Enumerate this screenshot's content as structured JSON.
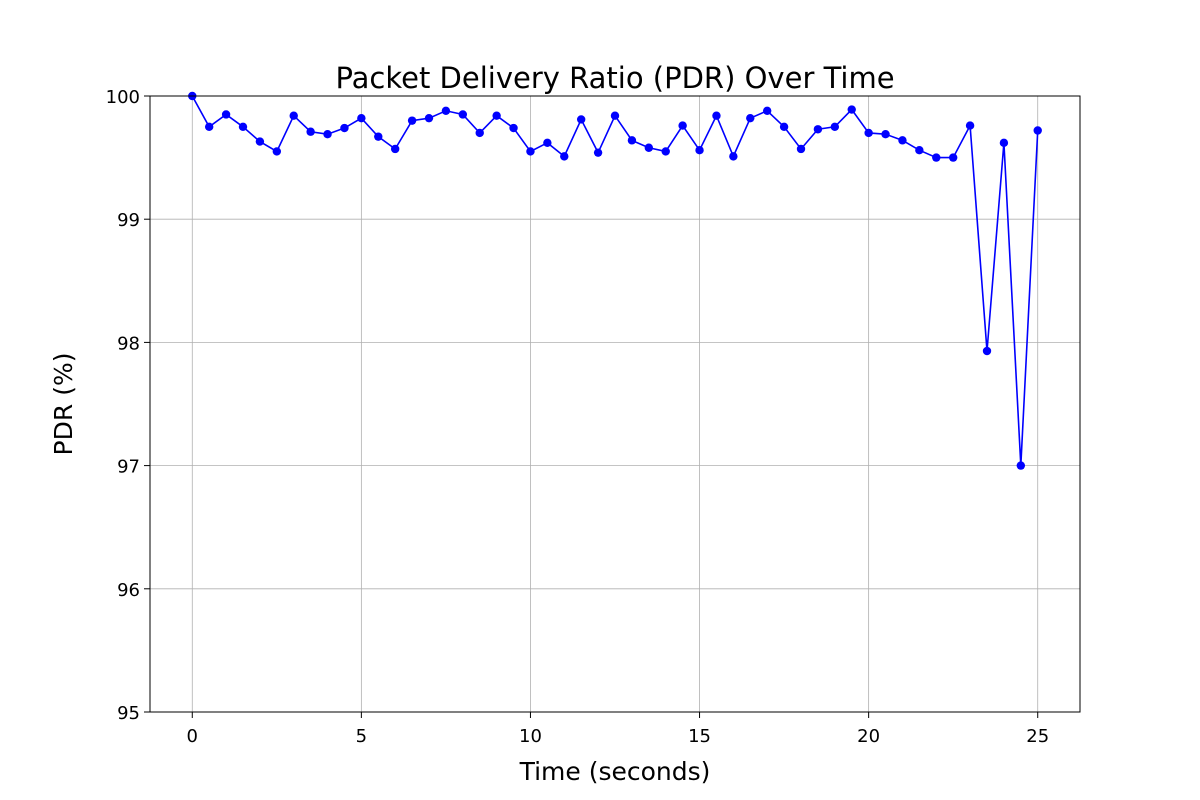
{
  "chart_data": {
    "type": "line",
    "title": "Packet Delivery Ratio (PDR) Over Time",
    "xlabel": "Time (seconds)",
    "ylabel": "PDR (%)",
    "xlim": [
      -1.25,
      26.25
    ],
    "ylim": [
      95,
      100
    ],
    "xticks": [
      0,
      5,
      10,
      15,
      20,
      25
    ],
    "yticks": [
      95,
      96,
      97,
      98,
      99,
      100
    ],
    "grid": true,
    "legend": "none",
    "series": [
      {
        "color": "#0000ff",
        "marker": "circle",
        "x": [
          0,
          0.5,
          1,
          1.5,
          2,
          2.5,
          3,
          3.5,
          4,
          4.5,
          5,
          5.5,
          6,
          6.5,
          7,
          7.5,
          8,
          8.5,
          9,
          9.5,
          10,
          10.5,
          11,
          11.5,
          12,
          12.5,
          13,
          13.5,
          14,
          14.5,
          15,
          15.5,
          16,
          16.5,
          17,
          17.5,
          18,
          18.5,
          19,
          19.5,
          20,
          20.5,
          21,
          21.5,
          22,
          22.5,
          23,
          23.5,
          24,
          24.5,
          25
        ],
        "y": [
          100.0,
          99.75,
          99.85,
          99.75,
          99.63,
          99.55,
          99.84,
          99.71,
          99.69,
          99.74,
          99.82,
          99.67,
          99.57,
          99.8,
          99.82,
          99.88,
          99.85,
          99.7,
          99.84,
          99.74,
          99.55,
          99.62,
          99.51,
          99.81,
          99.54,
          99.84,
          99.64,
          99.58,
          99.55,
          99.76,
          99.56,
          99.84,
          99.51,
          99.82,
          99.88,
          99.75,
          99.57,
          99.73,
          99.75,
          99.89,
          99.7,
          99.69,
          99.64,
          99.56,
          99.5,
          99.5,
          99.76,
          97.93,
          99.62,
          97.0,
          99.72
        ]
      }
    ]
  }
}
